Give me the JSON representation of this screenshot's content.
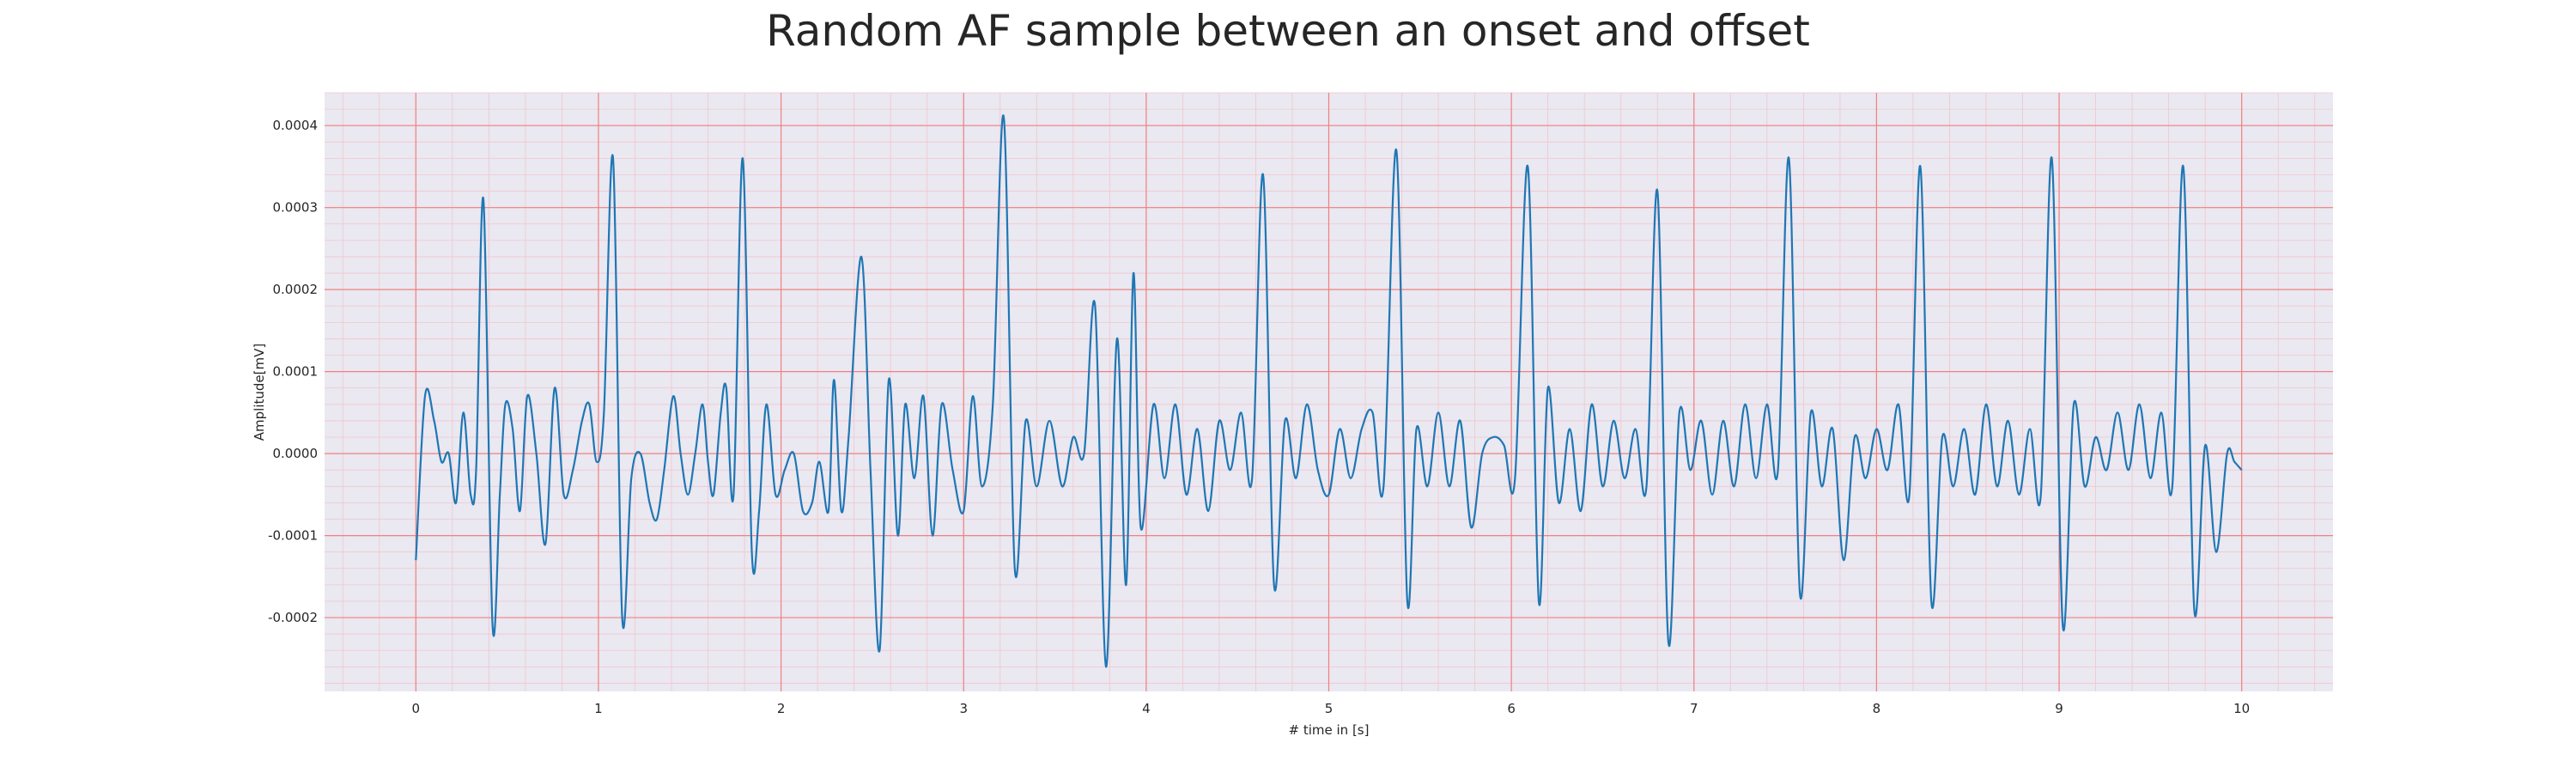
{
  "chart_data": {
    "type": "line",
    "title": "Random AF sample between an onset and offset",
    "xlabel": "# time in [s]",
    "ylabel": "Amplitude[mV]",
    "xlim": [
      -0.5,
      10.5
    ],
    "ylim": [
      -0.00029,
      0.00044
    ],
    "x_ticks": [
      0,
      1,
      2,
      3,
      4,
      5,
      6,
      7,
      8,
      9,
      10
    ],
    "y_ticks": [
      -0.0002,
      -0.0001,
      0.0,
      0.0001,
      0.0002,
      0.0003,
      0.0004
    ],
    "x_tick_labels": [
      "0",
      "1",
      "2",
      "3",
      "4",
      "5",
      "6",
      "7",
      "8",
      "9",
      "10"
    ],
    "y_tick_labels": [
      "-0.0002",
      "-0.0001",
      "0.0000",
      "0.0001",
      "0.0002",
      "0.0003",
      "0.0004"
    ],
    "x_minor_step": 0.2,
    "y_minor_step": 2e-05,
    "grid": true,
    "legend": false,
    "colors": {
      "line": "#1f77b4",
      "plot_background": "#eae8f1",
      "major_grid": "#f08080",
      "minor_grid": "#f2c6cc",
      "text": "#262626"
    },
    "series": [
      {
        "points": [
          [
            0.0,
            -0.00013
          ],
          [
            0.05,
            7e-05
          ],
          [
            0.1,
            4e-05
          ],
          [
            0.14,
            -1e-05
          ],
          [
            0.18,
            0.0
          ],
          [
            0.22,
            -6e-05
          ],
          [
            0.26,
            5e-05
          ],
          [
            0.3,
            -5e-05
          ],
          [
            0.33,
            -2e-05
          ],
          [
            0.37,
            0.00031
          ],
          [
            0.42,
            -0.00021
          ],
          [
            0.46,
            -5e-05
          ],
          [
            0.49,
            6e-05
          ],
          [
            0.53,
            3e-05
          ],
          [
            0.57,
            -7e-05
          ],
          [
            0.61,
            7e-05
          ],
          [
            0.66,
            0.0
          ],
          [
            0.71,
            -0.00011
          ],
          [
            0.76,
            8e-05
          ],
          [
            0.81,
            -5e-05
          ],
          [
            0.86,
            -2e-05
          ],
          [
            0.91,
            4e-05
          ],
          [
            0.95,
            6e-05
          ],
          [
            0.99,
            -1e-05
          ],
          [
            1.03,
            5e-05
          ],
          [
            1.08,
            0.00036
          ],
          [
            1.13,
            -0.0002
          ],
          [
            1.18,
            -3e-05
          ],
          [
            1.23,
            0.0
          ],
          [
            1.28,
            -6e-05
          ],
          [
            1.32,
            -8e-05
          ],
          [
            1.36,
            -2e-05
          ],
          [
            1.41,
            7e-05
          ],
          [
            1.45,
            0.0
          ],
          [
            1.49,
            -5e-05
          ],
          [
            1.53,
            0.0
          ],
          [
            1.57,
            6e-05
          ],
          [
            1.6,
            -1e-05
          ],
          [
            1.63,
            -5e-05
          ],
          [
            1.67,
            5e-05
          ],
          [
            1.7,
            8e-05
          ],
          [
            1.74,
            -5e-05
          ],
          [
            1.79,
            0.00036
          ],
          [
            1.84,
            -0.00012
          ],
          [
            1.88,
            -7e-05
          ],
          [
            1.92,
            6e-05
          ],
          [
            1.97,
            -5e-05
          ],
          [
            2.02,
            -2e-05
          ],
          [
            2.07,
            0.0
          ],
          [
            2.12,
            -7e-05
          ],
          [
            2.17,
            -6e-05
          ],
          [
            2.21,
            -1e-05
          ],
          [
            2.26,
            -7e-05
          ],
          [
            2.29,
            9e-05
          ],
          [
            2.33,
            -7e-05
          ],
          [
            2.37,
            2e-05
          ],
          [
            2.44,
            0.00024
          ],
          [
            2.49,
            -2e-05
          ],
          [
            2.54,
            -0.00024
          ],
          [
            2.59,
            9e-05
          ],
          [
            2.64,
            -0.0001
          ],
          [
            2.68,
            6e-05
          ],
          [
            2.73,
            -3e-05
          ],
          [
            2.78,
            7e-05
          ],
          [
            2.83,
            -0.0001
          ],
          [
            2.88,
            6e-05
          ],
          [
            2.94,
            -2e-05
          ],
          [
            3.0,
            -7e-05
          ],
          [
            3.05,
            7e-05
          ],
          [
            3.1,
            -4e-05
          ],
          [
            3.16,
            6e-05
          ],
          [
            3.22,
            0.00041
          ],
          [
            3.28,
            -0.00014
          ],
          [
            3.34,
            4e-05
          ],
          [
            3.4,
            -4e-05
          ],
          [
            3.47,
            4e-05
          ],
          [
            3.54,
            -4e-05
          ],
          [
            3.6,
            2e-05
          ],
          [
            3.66,
            0.0
          ],
          [
            3.72,
            0.00018
          ],
          [
            3.78,
            -0.00026
          ],
          [
            3.84,
            0.00014
          ],
          [
            3.89,
            -0.00016
          ],
          [
            3.93,
            0.00022
          ],
          [
            3.97,
            -9e-05
          ],
          [
            4.04,
            6e-05
          ],
          [
            4.1,
            -3e-05
          ],
          [
            4.16,
            6e-05
          ],
          [
            4.22,
            -5e-05
          ],
          [
            4.28,
            3e-05
          ],
          [
            4.34,
            -7e-05
          ],
          [
            4.4,
            4e-05
          ],
          [
            4.46,
            -2e-05
          ],
          [
            4.52,
            5e-05
          ],
          [
            4.58,
            -3e-05
          ],
          [
            4.64,
            0.00034
          ],
          [
            4.7,
            -0.00016
          ],
          [
            4.76,
            4e-05
          ],
          [
            4.82,
            -3e-05
          ],
          [
            4.88,
            6e-05
          ],
          [
            4.94,
            -2e-05
          ],
          [
            5.0,
            -5e-05
          ],
          [
            5.06,
            3e-05
          ],
          [
            5.12,
            -3e-05
          ],
          [
            5.18,
            3e-05
          ],
          [
            5.24,
            5e-05
          ],
          [
            5.3,
            -4e-05
          ],
          [
            5.37,
            0.00037
          ],
          [
            5.43,
            -0.00018
          ],
          [
            5.48,
            3e-05
          ],
          [
            5.54,
            -4e-05
          ],
          [
            5.6,
            5e-05
          ],
          [
            5.66,
            -4e-05
          ],
          [
            5.72,
            4e-05
          ],
          [
            5.78,
            -9e-05
          ],
          [
            5.84,
            0.0
          ],
          [
            5.9,
            2e-05
          ],
          [
            5.96,
            1e-05
          ],
          [
            6.02,
            -3e-05
          ],
          [
            6.09,
            0.00035
          ],
          [
            6.15,
            -0.00018
          ],
          [
            6.2,
            8e-05
          ],
          [
            6.26,
            -6e-05
          ],
          [
            6.32,
            3e-05
          ],
          [
            6.38,
            -7e-05
          ],
          [
            6.44,
            6e-05
          ],
          [
            6.5,
            -4e-05
          ],
          [
            6.56,
            4e-05
          ],
          [
            6.62,
            -3e-05
          ],
          [
            6.68,
            3e-05
          ],
          [
            6.74,
            -4e-05
          ],
          [
            6.8,
            0.00032
          ],
          [
            6.86,
            -0.00023
          ],
          [
            6.92,
            5e-05
          ],
          [
            6.98,
            -2e-05
          ],
          [
            7.04,
            4e-05
          ],
          [
            7.1,
            -5e-05
          ],
          [
            7.16,
            4e-05
          ],
          [
            7.22,
            -4e-05
          ],
          [
            7.28,
            6e-05
          ],
          [
            7.34,
            -3e-05
          ],
          [
            7.4,
            6e-05
          ],
          [
            7.46,
            -2e-05
          ],
          [
            7.52,
            0.00036
          ],
          [
            7.58,
            -0.00017
          ],
          [
            7.64,
            5e-05
          ],
          [
            7.7,
            -4e-05
          ],
          [
            7.76,
            3e-05
          ],
          [
            7.82,
            -0.00013
          ],
          [
            7.88,
            2e-05
          ],
          [
            7.94,
            -3e-05
          ],
          [
            8.0,
            3e-05
          ],
          [
            8.06,
            -2e-05
          ],
          [
            8.12,
            6e-05
          ],
          [
            8.18,
            -5e-05
          ],
          [
            8.24,
            0.00035
          ],
          [
            8.3,
            -0.00018
          ],
          [
            8.36,
            2e-05
          ],
          [
            8.42,
            -4e-05
          ],
          [
            8.48,
            3e-05
          ],
          [
            8.54,
            -5e-05
          ],
          [
            8.6,
            6e-05
          ],
          [
            8.66,
            -4e-05
          ],
          [
            8.72,
            4e-05
          ],
          [
            8.78,
            -5e-05
          ],
          [
            8.84,
            3e-05
          ],
          [
            8.9,
            -5e-05
          ],
          [
            8.96,
            0.00036
          ],
          [
            9.02,
            -0.00021
          ],
          [
            9.08,
            6e-05
          ],
          [
            9.14,
            -4e-05
          ],
          [
            9.2,
            2e-05
          ],
          [
            9.26,
            -2e-05
          ],
          [
            9.32,
            5e-05
          ],
          [
            9.38,
            -2e-05
          ],
          [
            9.44,
            6e-05
          ],
          [
            9.5,
            -3e-05
          ],
          [
            9.56,
            5e-05
          ],
          [
            9.62,
            -4e-05
          ],
          [
            9.68,
            0.00035
          ],
          [
            9.74,
            -0.00019
          ],
          [
            9.8,
            1e-05
          ],
          [
            9.86,
            -0.00012
          ],
          [
            9.92,
            0.0
          ],
          [
            9.96,
            -1e-05
          ],
          [
            10.0,
            -2e-05
          ]
        ]
      }
    ]
  }
}
